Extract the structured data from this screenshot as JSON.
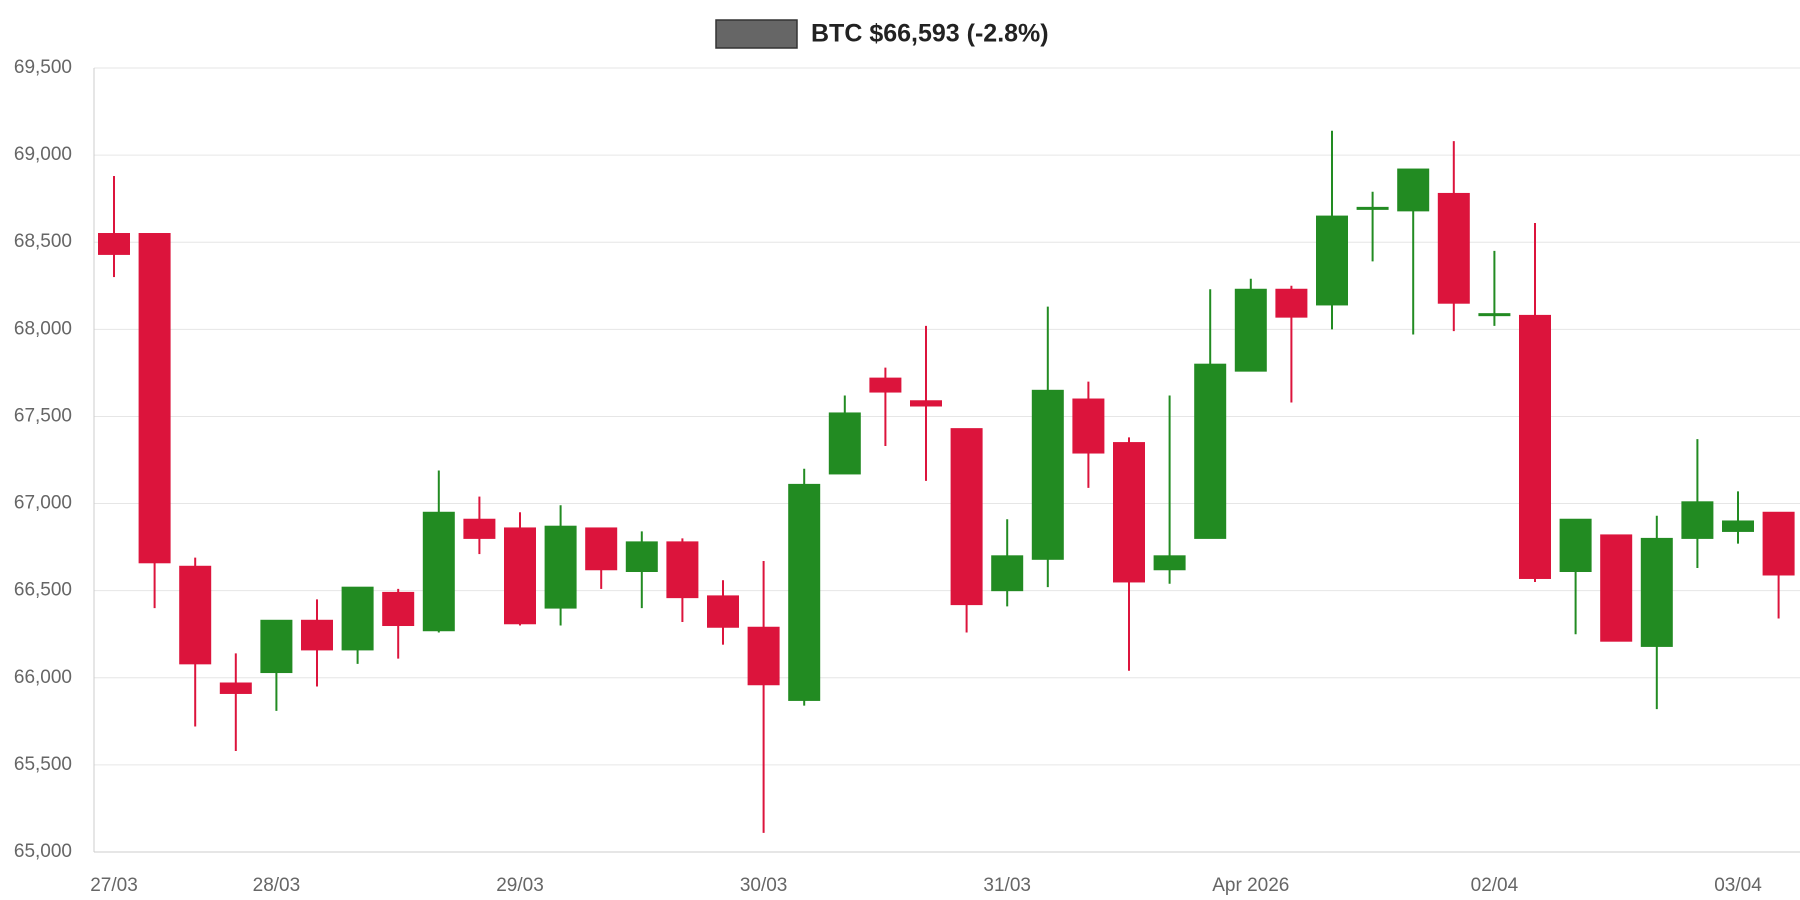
{
  "chart_data": {
    "type": "candlestick",
    "title": "BTC $66,593 (-2.8%)",
    "legend_color": "#666666",
    "up_color": "#228b22",
    "down_color": "#dc143c",
    "grid": true,
    "categories": [
      "27/03",
      null,
      null,
      null,
      "28/03",
      null,
      null,
      null,
      null,
      null,
      "29/03",
      null,
      null,
      null,
      null,
      null,
      "30/03",
      null,
      null,
      null,
      null,
      null,
      "31/03",
      null,
      null,
      null,
      null,
      null,
      "Apr 2026",
      null,
      null,
      null,
      null,
      null,
      "02/04",
      null,
      null,
      null,
      null,
      null,
      "03/04",
      null
    ],
    "open": [
      68550,
      68550,
      66640,
      65970,
      66030,
      66330,
      66160,
      66490,
      66270,
      66910,
      66860,
      66400,
      66860,
      66610,
      66780,
      66470,
      66290,
      65870,
      67170,
      67720,
      67590,
      67430,
      66500,
      66680,
      67600,
      67350,
      66620,
      66800,
      67760,
      68230,
      68140,
      68690,
      68680,
      68780,
      68080,
      68080,
      66610,
      66820,
      66180,
      66800,
      66840,
      66950
    ],
    "high": [
      68880,
      68550,
      66690,
      66140,
      66330,
      66450,
      66520,
      66510,
      67190,
      67040,
      66950,
      66990,
      66860,
      66840,
      66800,
      66560,
      66670,
      67200,
      67620,
      67780,
      68020,
      67430,
      66910,
      68130,
      67700,
      67380,
      67620,
      68230,
      68290,
      68250,
      69140,
      68790,
      68920,
      69080,
      68450,
      68610,
      66910,
      66820,
      66930,
      67370,
      67070,
      66950
    ],
    "low": [
      68300,
      66400,
      65720,
      65580,
      65810,
      65950,
      66080,
      66110,
      66260,
      66710,
      66300,
      66300,
      66510,
      66400,
      66320,
      66190,
      65110,
      65840,
      67170,
      67330,
      67130,
      66260,
      66410,
      66520,
      67090,
      66040,
      66540,
      66800,
      67760,
      67580,
      68000,
      68390,
      67970,
      67990,
      68020,
      66550,
      66250,
      66210,
      65820,
      66630,
      66770,
      66340
    ],
    "close": [
      68430,
      66660,
      66080,
      65910,
      66330,
      66160,
      66520,
      66300,
      66950,
      66800,
      66310,
      66870,
      66620,
      66780,
      66460,
      66290,
      65960,
      67110,
      67520,
      67640,
      67560,
      66420,
      66700,
      67650,
      67290,
      66550,
      66700,
      67800,
      68230,
      68070,
      68650,
      68700,
      68920,
      68150,
      68090,
      66570,
      66910,
      66210,
      66800,
      67010,
      66900,
      66590
    ],
    "ylim": [
      65000,
      69500
    ],
    "yticks": [
      {
        "value": 65000,
        "label": "65,000"
      },
      {
        "value": 65500,
        "label": "65,500"
      },
      {
        "value": 66000,
        "label": "66,000"
      },
      {
        "value": 66500,
        "label": "66,500"
      },
      {
        "value": 67000,
        "label": "67,000"
      },
      {
        "value": 67500,
        "label": "67,500"
      },
      {
        "value": 68000,
        "label": "68,000"
      },
      {
        "value": 68500,
        "label": "68,500"
      },
      {
        "value": 69000,
        "label": "69,000"
      },
      {
        "value": 69500,
        "label": "69,500"
      }
    ]
  }
}
